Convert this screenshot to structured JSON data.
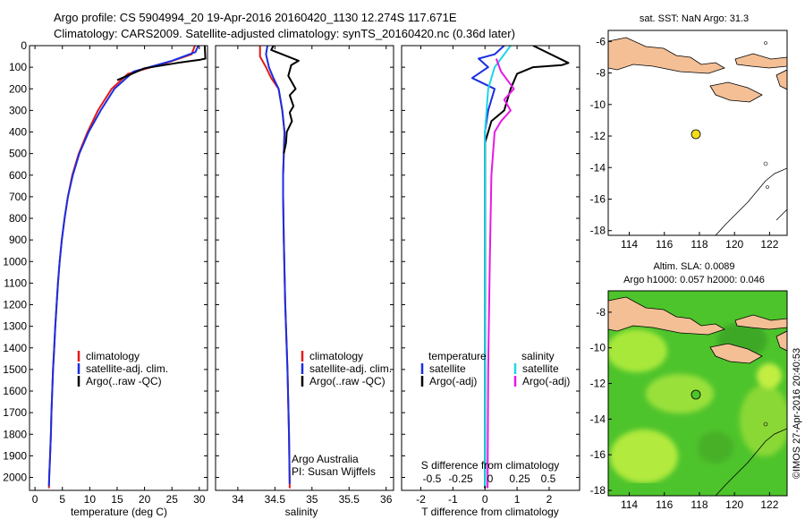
{
  "header": {
    "line1": "Argo profile: CS 5904994_20 19-Apr-2016 20160420_1130 12.274S 117.671E",
    "line2": "Climatology: CARS2009. Satellite-adjusted climatology: synTS_20160420.nc (0.36d later)"
  },
  "colors": {
    "climatology": "#e21a1a",
    "satellite": "#1a2fe0",
    "argo": "#000000",
    "salinity_satellite": "#1ed6e6",
    "salinity_argo": "#e61ae6",
    "land": "#f4bf95",
    "marker": "#f2dc1a"
  },
  "chart_data": [
    {
      "type": "line",
      "id": "temperature",
      "xlabel": "temperature (deg C)",
      "xlim": [
        -1,
        31.5
      ],
      "ylim": [
        2060,
        0
      ],
      "xticks": [
        0,
        5,
        10,
        15,
        20,
        25,
        30
      ],
      "yticks": [
        0,
        100,
        200,
        300,
        400,
        500,
        600,
        700,
        800,
        900,
        1000,
        1100,
        1200,
        1300,
        1400,
        1500,
        1600,
        1700,
        1800,
        1900,
        2000
      ],
      "legend": [
        "climatology",
        "satellite-adj. clim.",
        "Argo(..raw -QC)"
      ],
      "series": [
        {
          "name": "climatology",
          "color": "#e21a1a",
          "points": [
            [
              29.2,
              0
            ],
            [
              28.6,
              40
            ],
            [
              24,
              80
            ],
            [
              17,
              130
            ],
            [
              14,
              200
            ],
            [
              11.5,
              300
            ],
            [
              9.6,
              400
            ],
            [
              8.0,
              500
            ],
            [
              6.8,
              600
            ],
            [
              6.0,
              700
            ],
            [
              5.4,
              800
            ],
            [
              4.9,
              900
            ],
            [
              4.5,
              1000
            ],
            [
              4.2,
              1100
            ],
            [
              3.95,
              1200
            ],
            [
              3.7,
              1300
            ],
            [
              3.5,
              1400
            ],
            [
              3.3,
              1500
            ],
            [
              3.15,
              1600
            ],
            [
              3.0,
              1700
            ],
            [
              2.9,
              1800
            ],
            [
              2.75,
              1900
            ],
            [
              2.6,
              2000
            ],
            [
              2.55,
              2050
            ]
          ]
        },
        {
          "name": "satellite-adj. clim.",
          "color": "#1a2fe0",
          "points": [
            [
              29.8,
              0
            ],
            [
              29.3,
              30
            ],
            [
              25,
              70
            ],
            [
              18,
              120
            ],
            [
              14.5,
              200
            ],
            [
              12,
              300
            ],
            [
              9.8,
              400
            ],
            [
              8.1,
              500
            ],
            [
              6.9,
              600
            ],
            [
              6.0,
              700
            ],
            [
              5.4,
              800
            ],
            [
              4.9,
              900
            ],
            [
              4.5,
              1000
            ],
            [
              4.2,
              1100
            ],
            [
              3.95,
              1200
            ],
            [
              3.7,
              1300
            ],
            [
              3.5,
              1400
            ],
            [
              3.3,
              1500
            ],
            [
              3.15,
              1600
            ],
            [
              3.0,
              1700
            ],
            [
              2.9,
              1800
            ],
            [
              2.75,
              1900
            ],
            [
              2.6,
              2000
            ],
            [
              2.55,
              2040
            ]
          ]
        },
        {
          "name": "Argo(..raw -QC)",
          "color": "#000000",
          "points": [
            [
              31.0,
              0
            ],
            [
              31.1,
              60
            ],
            [
              30.2,
              65
            ],
            [
              28.8,
              70
            ],
            [
              26,
              80
            ],
            [
              20,
              105
            ],
            [
              15,
              160
            ]
          ]
        }
      ]
    },
    {
      "type": "line",
      "id": "salinity",
      "xlabel": "salinity",
      "xlim": [
        33.7,
        36.1
      ],
      "ylim": [
        2060,
        0
      ],
      "xticks": [
        34,
        34.5,
        35,
        35.5,
        36
      ],
      "yticks": [
        0,
        100,
        200,
        300,
        400,
        500,
        600,
        700,
        800,
        900,
        1000,
        1100,
        1200,
        1300,
        1400,
        1500,
        1600,
        1700,
        1800,
        1900,
        2000
      ],
      "legend": [
        "climatology",
        "satellite-adj. clim.",
        "Argo(..raw -QC)"
      ],
      "annotation": [
        "Argo Australia",
        "PI: Susan Wijffels"
      ],
      "series": [
        {
          "name": "climatology",
          "color": "#e21a1a",
          "points": [
            [
              34.3,
              0
            ],
            [
              34.3,
              50
            ],
            [
              34.38,
              100
            ],
            [
              34.45,
              150
            ],
            [
              34.55,
              200
            ],
            [
              34.6,
              300
            ],
            [
              34.63,
              400
            ],
            [
              34.62,
              500
            ],
            [
              34.61,
              600
            ],
            [
              34.61,
              700
            ],
            [
              34.62,
              900
            ],
            [
              34.64,
              1200
            ],
            [
              34.67,
              1500
            ],
            [
              34.69,
              1800
            ],
            [
              34.7,
              2050
            ]
          ]
        },
        {
          "name": "satellite-adj. clim.",
          "color": "#1a2fe0",
          "points": [
            [
              34.4,
              0
            ],
            [
              34.38,
              40
            ],
            [
              34.42,
              100
            ],
            [
              34.48,
              150
            ],
            [
              34.55,
              200
            ],
            [
              34.6,
              300
            ],
            [
              34.63,
              400
            ],
            [
              34.62,
              500
            ],
            [
              34.61,
              600
            ],
            [
              34.61,
              700
            ],
            [
              34.62,
              900
            ],
            [
              34.64,
              1200
            ],
            [
              34.67,
              1500
            ],
            [
              34.69,
              1800
            ],
            [
              34.7,
              2030
            ]
          ]
        },
        {
          "name": "Argo(..raw -QC)",
          "color": "#000000",
          "points": [
            [
              34.48,
              0
            ],
            [
              34.45,
              20
            ],
            [
              34.82,
              70
            ],
            [
              34.72,
              90
            ],
            [
              34.68,
              140
            ],
            [
              34.78,
              200
            ],
            [
              34.7,
              230
            ],
            [
              34.75,
              280
            ],
            [
              34.7,
              310
            ],
            [
              34.73,
              350
            ],
            [
              34.66,
              400
            ],
            [
              34.65,
              450
            ],
            [
              34.62,
              500
            ]
          ]
        }
      ]
    },
    {
      "type": "line",
      "id": "difference",
      "xlabel": "T difference from climatology",
      "xlabel_top": "S difference from climatology",
      "xlim": [
        -2.6,
        2.95
      ],
      "ylim": [
        2060,
        0
      ],
      "xticks": [
        -2,
        -1,
        0,
        1,
        2
      ],
      "s_ticks": [
        "-0.5",
        "-0.25",
        "0",
        "0.25",
        "0.5"
      ],
      "yticks": [
        0,
        100,
        200,
        300,
        400,
        500,
        600,
        700,
        800,
        900,
        1000,
        1100,
        1200,
        1300,
        1400,
        1500,
        1600,
        1700,
        1800,
        1900,
        2000
      ],
      "legend_temperature": {
        "title": "temperature",
        "items": [
          "satellite",
          "Argo(-adj)"
        ]
      },
      "legend_salinity": {
        "title": "salinity",
        "items": [
          "satellite",
          "Argo(-adj)"
        ]
      },
      "series": [
        {
          "name": "temperature satellite",
          "color": "#1a2fe0",
          "points": [
            [
              0.6,
              0
            ],
            [
              0.3,
              40
            ],
            [
              -0.2,
              60
            ],
            [
              0.1,
              100
            ],
            [
              -0.4,
              150
            ],
            [
              0.3,
              200
            ],
            [
              0.1,
              300
            ],
            [
              0,
              400
            ],
            [
              0,
              600
            ],
            [
              0,
              1000
            ],
            [
              0,
              1500
            ],
            [
              0,
              2040
            ]
          ]
        },
        {
          "name": "temperature Argo(-adj)",
          "color": "#000000",
          "points": [
            [
              1.5,
              0
            ],
            [
              2.6,
              80
            ],
            [
              2.4,
              90
            ],
            [
              1.5,
              100
            ],
            [
              1.0,
              130
            ],
            [
              0.8,
              200
            ],
            [
              0.6,
              300
            ],
            [
              0.2,
              350
            ],
            [
              0,
              450
            ],
            [
              0,
              1000
            ],
            [
              0,
              1500
            ],
            [
              0,
              2050
            ]
          ]
        },
        {
          "name": "salinity satellite",
          "color": "#1ed6e6",
          "points": [
            [
              0.8,
              0
            ],
            [
              0.5,
              60
            ],
            [
              0.3,
              100
            ],
            [
              0.1,
              200
            ],
            [
              0.05,
              300
            ],
            [
              0,
              400
            ],
            [
              0,
              1500
            ],
            [
              0,
              2040
            ]
          ]
        },
        {
          "name": "salinity Argo(-adj)",
          "color": "#e61ae6",
          "points": [
            [
              0.35,
              60
            ],
            [
              0.5,
              120
            ],
            [
              0.9,
              200
            ],
            [
              0.6,
              250
            ],
            [
              0.8,
              300
            ],
            [
              0.5,
              350
            ],
            [
              0.3,
              400
            ],
            [
              0.2,
              600
            ],
            [
              0.15,
              1000
            ],
            [
              0.1,
              1500
            ],
            [
              0.08,
              2050
            ]
          ]
        }
      ]
    }
  ],
  "maps": [
    {
      "title": "sat. SST: NaN Argo: 31.3",
      "xticks": [
        "114",
        "116",
        "118",
        "120",
        "122"
      ],
      "yticks": [
        "-6",
        "-8",
        "-10",
        "-12",
        "-14",
        "-16",
        "-18"
      ],
      "marker": {
        "lon": 117.671,
        "lat": -12.274
      }
    },
    {
      "title_line1": "Altim. SLA: 0.0089",
      "title_line2": "Argo h1000: 0.057 h2000: 0.046",
      "xticks": [
        "114",
        "116",
        "118",
        "120",
        "122"
      ],
      "yticks": [
        "-8",
        "-10",
        "-12",
        "-14",
        "-16",
        "-18"
      ],
      "marker": {
        "lon": 117.671,
        "lat": -12.274
      }
    }
  ],
  "footer_stamp": "©IMOS 27-Apr-2016 20:40:53"
}
